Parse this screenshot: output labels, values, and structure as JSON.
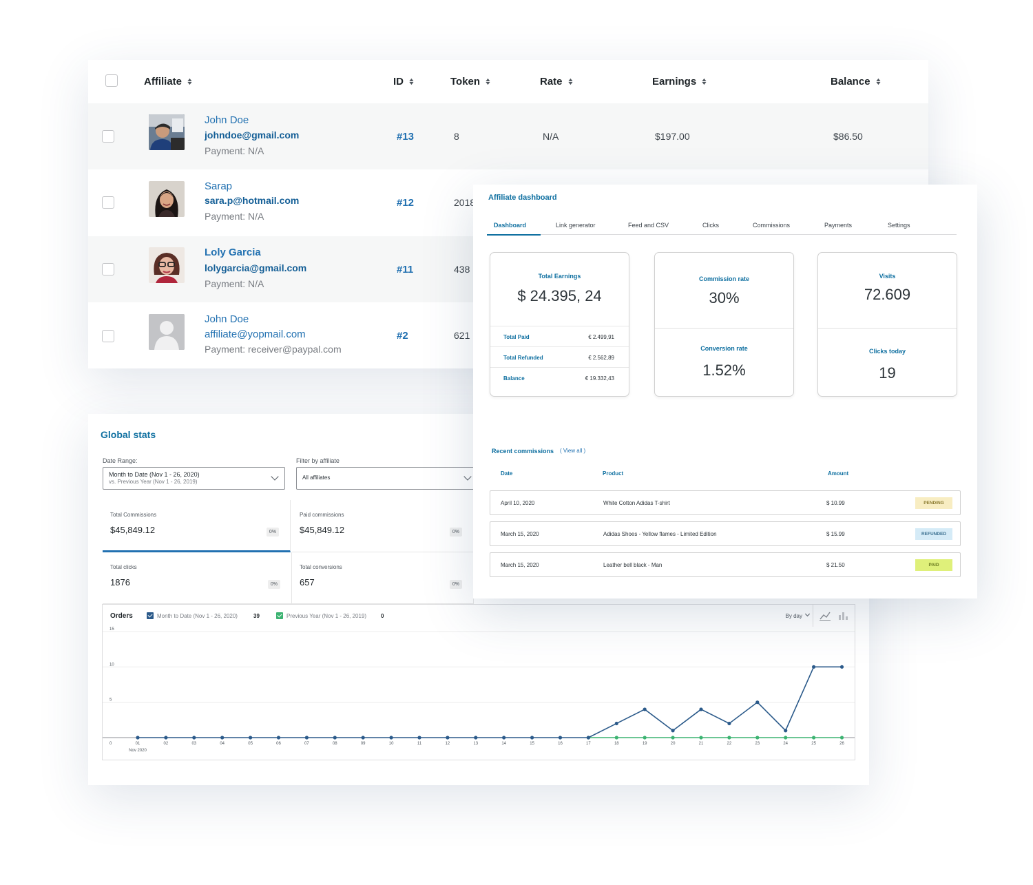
{
  "affiliates_table": {
    "columns": [
      {
        "label": "Affiliate"
      },
      {
        "label": "ID"
      },
      {
        "label": "Token"
      },
      {
        "label": "Rate"
      },
      {
        "label": "Earnings"
      },
      {
        "label": "Balance"
      }
    ],
    "rows": [
      {
        "name": "John Doe",
        "email": "johndoe@gmail.com",
        "payment": "Payment: N/A",
        "id": "#13",
        "token": "8",
        "rate": "N/A",
        "earnings": "$197.00",
        "balance": "$86.50",
        "avatar": "photo-man-hat"
      },
      {
        "name": "Sarap",
        "email": "sara.p@hotmail.com",
        "payment": "Payment: N/A",
        "id": "#12",
        "token": "2018",
        "rate": "",
        "earnings": "",
        "balance": "",
        "avatar": "photo-woman-dark-hair"
      },
      {
        "name": "Loly Garcia",
        "email": "lolygarcia@gmail.com",
        "payment": "Payment: N/A",
        "id": "#11",
        "token": "438",
        "rate": "",
        "earnings": "",
        "balance": "",
        "avatar": "photo-woman-glasses"
      },
      {
        "name": "John Doe",
        "email": "affiliate@yopmail.com",
        "payment": "Payment: receiver@paypal.com",
        "id": "#2",
        "token": "621",
        "rate": "",
        "earnings": "",
        "balance": "",
        "avatar": "default-user-placeholder"
      }
    ]
  },
  "global_stats": {
    "title": "Global stats",
    "date_range": {
      "label": "Date Range:",
      "value": "Month to Date (Nov 1 - 26, 2020)",
      "compare": "vs. Previous Year (Nov 1 - 26, 2019)"
    },
    "filter": {
      "label": "Filter by affiliate",
      "value": "All affiliates"
    },
    "tiles": [
      {
        "label": "Total Commissions",
        "value": "$45,849.12",
        "pct": "0%"
      },
      {
        "label": "Paid commissions",
        "value": "$45,849.12",
        "pct": "0%"
      },
      {
        "label": "Total clicks",
        "value": "1876",
        "pct": "0%"
      },
      {
        "label": "Total conversions",
        "value": "657",
        "pct": "0%"
      }
    ],
    "orders_chart": {
      "title": "Orders",
      "interval": "By day",
      "legend": [
        {
          "label": "Month to Date (Nov 1 - 26, 2020)",
          "count": "39",
          "color": "#2b5a8a"
        },
        {
          "label": "Previous Year (Nov 1 - 26, 2019)",
          "count": "0",
          "color": "#3cb371"
        }
      ],
      "icons": [
        "line-chart-icon",
        "bar-chart-icon"
      ]
    }
  },
  "chart_data": {
    "type": "line",
    "title": "Orders",
    "x": [
      "01",
      "02",
      "03",
      "04",
      "05",
      "06",
      "07",
      "08",
      "09",
      "10",
      "11",
      "12",
      "13",
      "14",
      "15",
      "16",
      "17",
      "18",
      "19",
      "20",
      "21",
      "22",
      "23",
      "24",
      "25",
      "26"
    ],
    "x_sublabel": "Nov 2020",
    "y_ticks": [
      "0",
      "5",
      "10",
      "15"
    ],
    "ylim": [
      0,
      15
    ],
    "grid": true,
    "series": [
      {
        "name": "Month to Date (Nov 1 - 26, 2020)",
        "color": "#2b5a8a",
        "values": [
          0,
          0,
          0,
          0,
          0,
          0,
          0,
          0,
          0,
          0,
          0,
          0,
          0,
          0,
          0,
          0,
          0,
          2,
          4,
          1,
          4,
          2,
          5,
          1,
          10,
          10
        ]
      },
      {
        "name": "Previous Year (Nov 1 - 26, 2019)",
        "color": "#3cb371",
        "values": [
          0,
          0,
          0,
          0,
          0,
          0,
          0,
          0,
          0,
          0,
          0,
          0,
          0,
          0,
          0,
          0,
          0,
          0,
          0,
          0,
          0,
          0,
          0,
          0,
          0,
          0
        ]
      }
    ]
  },
  "dashboard": {
    "title": "Affiliate dashboard",
    "tabs": [
      "Dashboard",
      "Link generator",
      "Feed and CSV",
      "Clicks",
      "Commissions",
      "Payments",
      "Settings"
    ],
    "active_tab": "Dashboard",
    "earnings": {
      "label": "Total Earnings",
      "value": "$ 24.395, 24",
      "rows": [
        {
          "label": "Total Paid",
          "value": "€ 2.499,91"
        },
        {
          "label": "Total Refunded",
          "value": "€ 2.562,89"
        },
        {
          "label": "Balance",
          "value": "€ 19.332,43"
        }
      ]
    },
    "commission_rate": {
      "label": "Commission rate",
      "value": "30%"
    },
    "conversion_rate": {
      "label": "Conversion rate",
      "value": "1.52%"
    },
    "visits": {
      "label": "Visits",
      "value": "72.609"
    },
    "clicks_today": {
      "label": "Clicks today",
      "value": "19"
    },
    "recent": {
      "title": "Recent commissions",
      "view_all": "( View all )",
      "columns": [
        "Date",
        "Product",
        "Amount"
      ],
      "rows": [
        {
          "date": "April 10, 2020",
          "product": "White Cotton Adidas T-shirt",
          "amount": "$ 10.99",
          "status": "PENDING",
          "bg": "#f8edc2",
          "fg": "#8a7a30"
        },
        {
          "date": "March 15, 2020",
          "product": "Adidas Shoes - Yellow flames - Limited Edition",
          "amount": "$ 15.99",
          "status": "REFUNDED",
          "bg": "#d5ebf7",
          "fg": "#3a6f8f"
        },
        {
          "date": "March 15, 2020",
          "product": "Leather bell black - Man",
          "amount": "$ 21.50",
          "status": "PAID",
          "bg": "#dff07a",
          "fg": "#6a7a20"
        }
      ]
    }
  }
}
